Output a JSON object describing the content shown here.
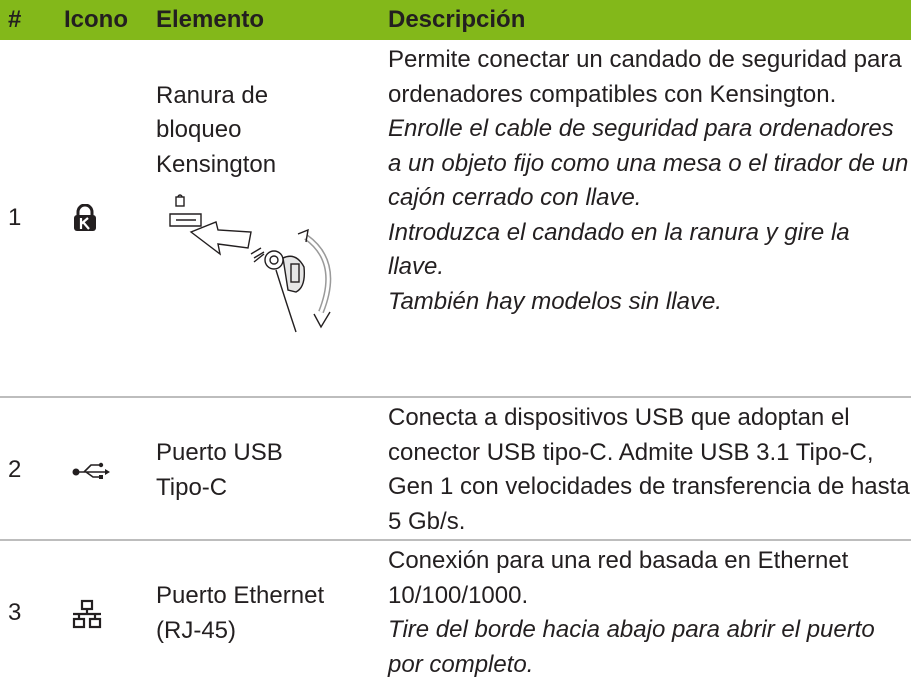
{
  "table": {
    "header": [
      "#",
      "Icono",
      "Elemento",
      "Descripción"
    ],
    "rows": [
      {
        "number": "1",
        "element": "Ranura de bloqueo Kensington",
        "description": [
          "Permite conectar un candado de seguridad para ordenadores compatibles con Kensington."
        ],
        "notes": [
          "Enrolle el cable de seguridad para ordenadores a un objeto fijo como una mesa o el tirador de un cajón cerrado con llave.",
          "Introduzca el candado en la ranura y gire la llave.",
          "También hay modelos sin llave."
        ]
      },
      {
        "number": "2",
        "element": "Puerto USB Tipo-C",
        "description": [
          "Conecta a dispositivos USB que adoptan el conector USB tipo-C. Admite USB 3.1 Tipo-C, Gen 1 con velocidades de transferencia de hasta 5 Gb/s."
        ],
        "notes": []
      },
      {
        "number": "3",
        "element": "Puerto Ethernet (RJ-45)",
        "description": [
          "Conexión para una red basada en Ethernet 10/100/1000."
        ],
        "notes": [
          "Tire del borde hacia abajo para abrir el puerto por completo."
        ]
      }
    ]
  }
}
